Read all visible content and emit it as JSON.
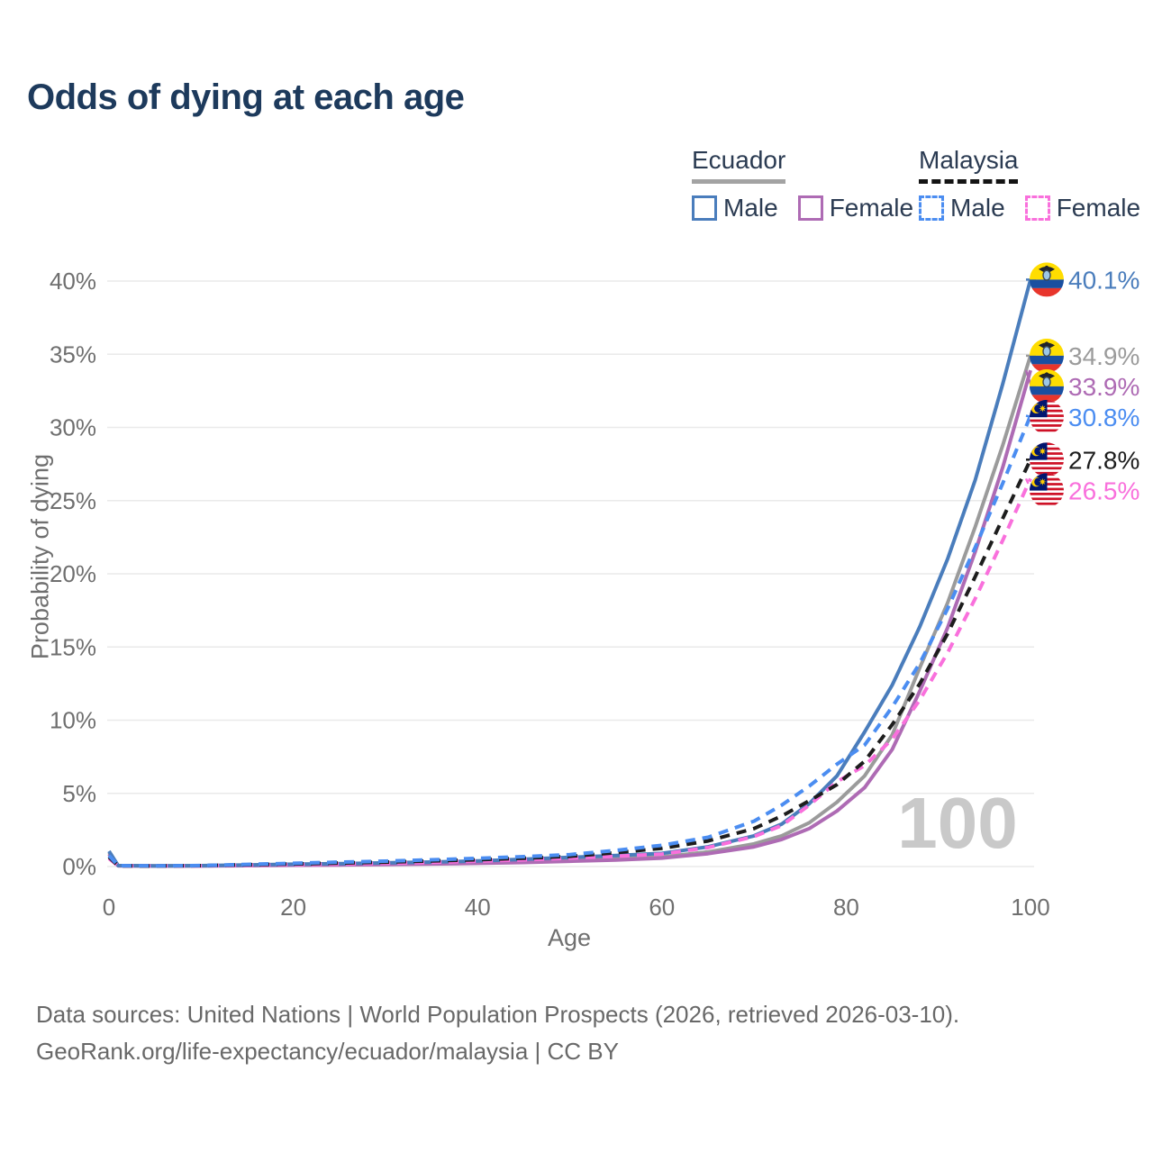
{
  "header": {
    "title": "Odds of dying at each age"
  },
  "legend": {
    "ecuador": {
      "title": "Ecuador",
      "male_label": "Male",
      "female_label": "Female"
    },
    "malaysia": {
      "title": "Malaysia",
      "male_label": "Male",
      "female_label": "Female"
    }
  },
  "colors": {
    "title_text": "#1d3a5c",
    "legend_text": "#2b3b52",
    "axis_text": "#6f6f6f",
    "gridline": "#eaeaea",
    "watermark": "#c9c9c9",
    "footer_text": "#686868",
    "ecuador_male": "#4a7dbc",
    "ecuador_total": "#9b9b9b",
    "ecuador_female": "#ae6bb4",
    "malaysia_male": "#4b8df1",
    "malaysia_total": "#1d1d1d",
    "malaysia_female": "#f970dc"
  },
  "chart_data": {
    "type": "line",
    "title": "Odds of dying at each age",
    "xlabel": "Age",
    "ylabel": "Probability of dying",
    "xlim": [
      0,
      100
    ],
    "ylim": [
      0,
      40
    ],
    "x_ticks": [
      0,
      20,
      40,
      60,
      80,
      100
    ],
    "y_ticks": [
      0,
      5,
      10,
      15,
      20,
      25,
      30,
      35,
      40
    ],
    "grid": "horizontal",
    "legend_position": "top-right",
    "watermark": "100",
    "x": [
      0,
      1,
      5,
      10,
      15,
      20,
      25,
      30,
      35,
      40,
      45,
      50,
      55,
      60,
      65,
      70,
      73,
      76,
      79,
      82,
      85,
      88,
      91,
      94,
      97,
      100
    ],
    "series": [
      {
        "id": "ecuador-total",
        "name": "Ecuador",
        "country": "Ecuador",
        "sex": "Both",
        "style": "solid",
        "color": "#9b9b9b",
        "flag": "ecuador",
        "end_value": 34.9,
        "end_label": "34.9%",
        "values": [
          0.95,
          0.06,
          0.04,
          0.05,
          0.08,
          0.12,
          0.15,
          0.19,
          0.24,
          0.3,
          0.36,
          0.42,
          0.52,
          0.66,
          1.0,
          1.55,
          2.1,
          3.0,
          4.4,
          6.2,
          9.0,
          13.6,
          18.0,
          23.2,
          28.8,
          34.9
        ]
      },
      {
        "id": "ecuador-female",
        "name": "Ecuador Female",
        "country": "Ecuador",
        "sex": "Female",
        "style": "solid",
        "color": "#ae6bb4",
        "flag": "ecuador",
        "end_value": 33.9,
        "end_label": "33.9%",
        "values": [
          0.85,
          0.05,
          0.04,
          0.05,
          0.06,
          0.09,
          0.11,
          0.14,
          0.18,
          0.22,
          0.28,
          0.36,
          0.45,
          0.58,
          0.88,
          1.35,
          1.85,
          2.6,
          3.8,
          5.4,
          8.0,
          12.0,
          16.3,
          21.5,
          27.3,
          33.9
        ]
      },
      {
        "id": "ecuador-male",
        "name": "Ecuador Male",
        "country": "Ecuador",
        "sex": "Male",
        "style": "solid",
        "color": "#4a7dbc",
        "flag": "ecuador",
        "end_value": 40.1,
        "end_label": "40.1%",
        "values": [
          1.05,
          0.07,
          0.05,
          0.06,
          0.11,
          0.16,
          0.2,
          0.25,
          0.31,
          0.38,
          0.5,
          0.63,
          0.75,
          0.9,
          1.35,
          2.1,
          2.9,
          4.3,
          6.2,
          9.2,
          12.4,
          16.4,
          21.0,
          26.4,
          33.0,
          40.1
        ]
      },
      {
        "id": "malaysia-female",
        "name": "Malaysia Female",
        "country": "Malaysia",
        "sex": "Female",
        "style": "dashed",
        "color": "#f970dc",
        "flag": "malaysia",
        "end_value": 26.5,
        "end_label": "26.5%",
        "values": [
          0.55,
          0.05,
          0.04,
          0.05,
          0.09,
          0.13,
          0.17,
          0.22,
          0.29,
          0.37,
          0.46,
          0.58,
          0.7,
          0.85,
          1.3,
          2.05,
          2.8,
          4.2,
          5.8,
          6.9,
          8.7,
          11.4,
          14.6,
          18.3,
          22.3,
          26.5
        ]
      },
      {
        "id": "malaysia-total",
        "name": "Malaysia",
        "country": "Malaysia",
        "sex": "Both",
        "style": "dashed",
        "color": "#1d1d1d",
        "flag": "malaysia",
        "end_value": 27.8,
        "end_label": "27.8%",
        "values": [
          0.65,
          0.05,
          0.04,
          0.06,
          0.12,
          0.18,
          0.24,
          0.3,
          0.38,
          0.47,
          0.57,
          0.7,
          0.95,
          1.25,
          1.75,
          2.6,
          3.45,
          4.5,
          5.6,
          7.2,
          9.7,
          12.5,
          15.9,
          19.8,
          23.8,
          27.8
        ]
      },
      {
        "id": "malaysia-male",
        "name": "Malaysia Male",
        "country": "Malaysia",
        "sex": "Male",
        "style": "dashed",
        "color": "#4b8df1",
        "flag": "malaysia",
        "end_value": 30.8,
        "end_label": "30.8%",
        "values": [
          0.75,
          0.06,
          0.05,
          0.07,
          0.15,
          0.22,
          0.3,
          0.37,
          0.46,
          0.56,
          0.68,
          0.82,
          1.1,
          1.45,
          2.0,
          3.1,
          4.2,
          5.5,
          7.0,
          8.3,
          10.9,
          13.9,
          17.6,
          21.8,
          26.2,
          30.8
        ]
      }
    ]
  },
  "footer": {
    "line1": "Data sources: United Nations | World Population Prospects (2026, retrieved 2026-03-10).",
    "line2": "GeoRank.org/life-expectancy/ecuador/malaysia | CC BY"
  }
}
